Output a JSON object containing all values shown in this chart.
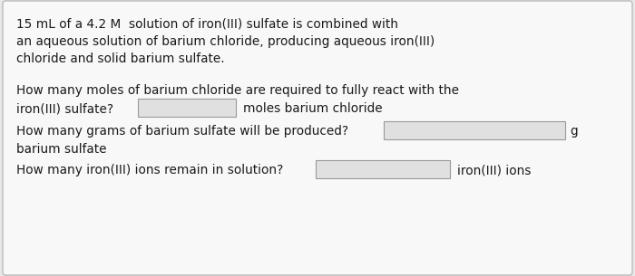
{
  "background_color": "#e8e8e8",
  "card_color": "#f8f8f8",
  "border_color": "#bbbbbb",
  "text_color": "#1a1a1a",
  "input_box_color": "#e0e0e0",
  "input_box_border": "#999999",
  "paragraph1_lines": [
    "15 mL of a 4.2 M  solution of iron(III) sulfate is combined with",
    "an aqueous solution of barium chloride, producing aqueous iron(III)",
    "chloride and solid barium sulfate."
  ],
  "q1_line1": "How many moles of barium chloride are required to fully react with the",
  "q1_line2_pre": "iron(III) sulfate?",
  "q1_line2_post": "moles barium chloride",
  "q2_line1_pre": "How many grams of barium sulfate will be produced?",
  "q2_line1_post": "g",
  "q2_line2": "barium sulfate",
  "q3_line1_pre": "How many iron(III) ions remain in solution?",
  "q3_line1_post": "iron(III) ions",
  "font_size_main": 9.8
}
